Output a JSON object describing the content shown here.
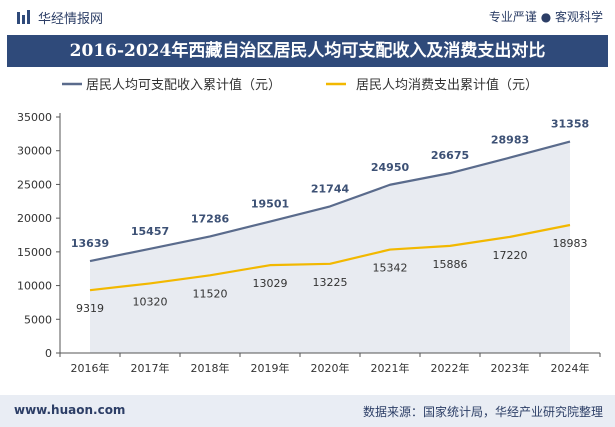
{
  "header": {
    "site_name": "华经情报网",
    "tagline": "专业严谨 ● 客观科学",
    "logo_icon": "bar-logo-icon"
  },
  "footer": {
    "url": "www.huaon.com",
    "source": "数据来源：国家统计局，华经产业研究院整理"
  },
  "colors": {
    "banner": "#2f4a7a",
    "income_series": "#5a6b8c",
    "consumption_series": "#f2b800",
    "income_label": "#3d5175",
    "consumption_label": "#333333"
  },
  "chart_data": {
    "type": "line",
    "title": "2016-2024年西藏自治区居民人均可支配收入及消费支出对比",
    "x": [
      "2016年",
      "2017年",
      "2018年",
      "2019年",
      "2020年",
      "2021年",
      "2022年",
      "2023年",
      "2024年"
    ],
    "ylim": [
      0,
      35000
    ],
    "yticks": [
      0,
      5000,
      10000,
      15000,
      20000,
      25000,
      30000,
      35000
    ],
    "grid": false,
    "legend_position": "top",
    "series": [
      {
        "name": "居民人均可支配收入累计值（元）",
        "values": [
          13639,
          15457,
          17286,
          19501,
          21744,
          24950,
          26675,
          28983,
          31358
        ],
        "area_fill": true
      },
      {
        "name": "居民人均消费支出累计值（元）",
        "values": [
          9319,
          10320,
          11520,
          13029,
          13225,
          15342,
          15886,
          17220,
          18983
        ],
        "area_fill": false
      }
    ]
  }
}
